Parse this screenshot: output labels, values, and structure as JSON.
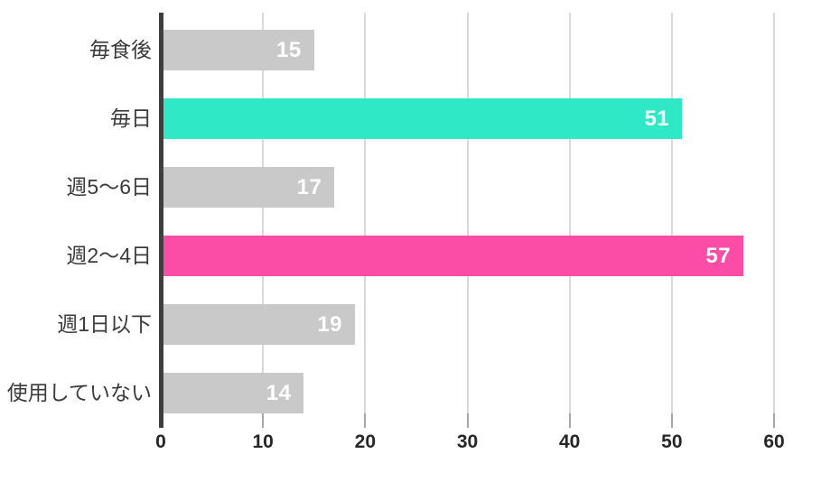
{
  "chart_data": {
    "type": "bar",
    "orientation": "horizontal",
    "title": "",
    "xlabel": "",
    "ylabel": "",
    "categories": [
      "毎食後",
      "毎日",
      "週5〜6日",
      "週2〜4日",
      "週1日以下",
      "使用していない"
    ],
    "values": [
      15,
      51,
      17,
      57,
      19,
      14
    ],
    "bar_colors": [
      "#C9C9C9",
      "#2FE8C5",
      "#C9C9C9",
      "#FB4DA6",
      "#C9C9C9",
      "#C9C9C9"
    ],
    "value_labels": [
      "15",
      "51",
      "17",
      "57",
      "19",
      "14"
    ],
    "value_label_color": "#FFFFFF",
    "xlim": [
      0,
      60
    ],
    "x_ticks": [
      "0",
      "10",
      "20",
      "30",
      "40",
      "50",
      "60"
    ],
    "grid": true,
    "legend_position": "none",
    "colors": {
      "highlight_teal": "#2FE8C5",
      "highlight_pink": "#FB4DA6",
      "default_gray": "#C9C9C9",
      "axis_line": "#3F3F3F",
      "gridline": "#D9D9D9",
      "tick_mark": "#A6A6A6",
      "category_text": "#3B3B3B",
      "axis_tick_text": "#262626",
      "background": "#FFFFFF"
    }
  }
}
